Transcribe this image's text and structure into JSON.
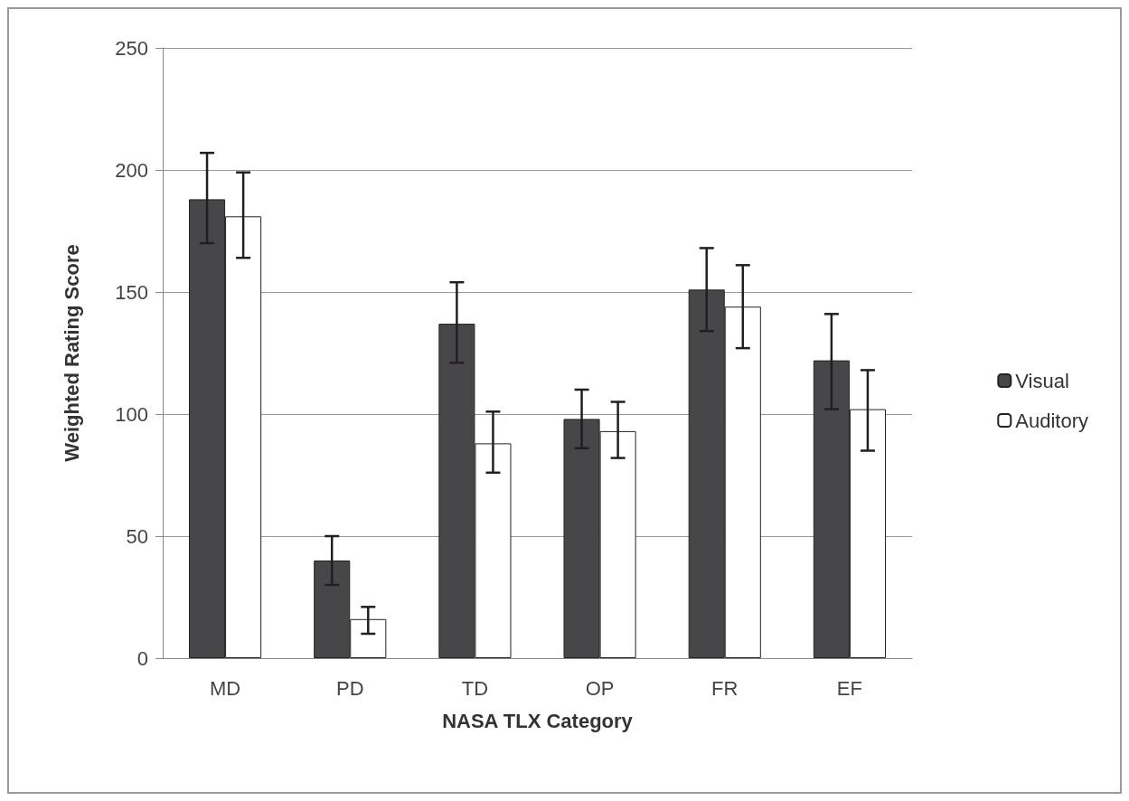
{
  "chart_data": {
    "type": "bar",
    "xlabel": "NASA TLX Category",
    "ylabel": "Weighted Rating Score",
    "categories": [
      "MD",
      "PD",
      "TD",
      "OP",
      "FR",
      "EF"
    ],
    "series": [
      {
        "name": "Visual",
        "color": "#474749",
        "values": [
          188,
          40,
          137,
          98,
          151,
          122
        ],
        "errors": [
          [
            170,
            207
          ],
          [
            30,
            50
          ],
          [
            121,
            154
          ],
          [
            86,
            110
          ],
          [
            134,
            168
          ],
          [
            102,
            141
          ]
        ]
      },
      {
        "name": "Auditory",
        "color": "#ffffff",
        "values": [
          181,
          16,
          88,
          93,
          144,
          102
        ],
        "errors": [
          [
            164,
            199
          ],
          [
            10,
            21
          ],
          [
            76,
            101
          ],
          [
            82,
            105
          ],
          [
            127,
            161
          ],
          [
            85,
            118
          ]
        ]
      }
    ],
    "ylim": [
      0,
      250
    ],
    "yticks": [
      0,
      50,
      100,
      150,
      200,
      250
    ],
    "grid": "y",
    "legend": "right"
  }
}
